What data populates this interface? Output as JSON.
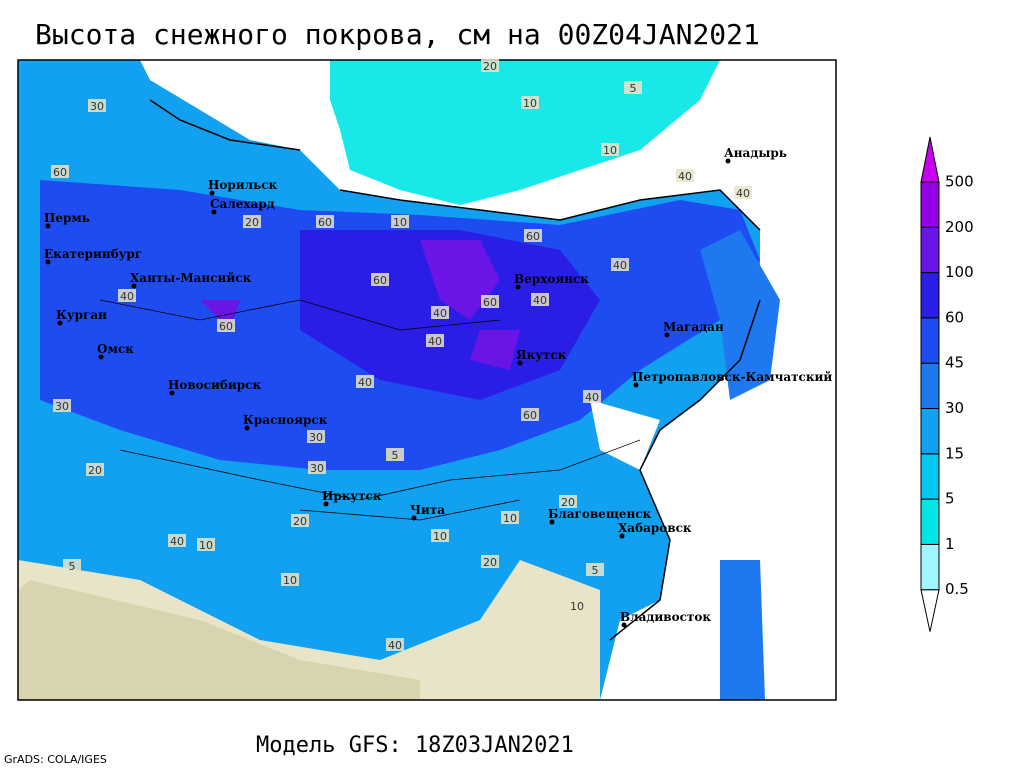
{
  "title": "Высота снежного покрова, см на 00Z04JAN2021",
  "model": "Модель GFS: 18Z03JAN2021",
  "credit": "GrADS: COLA/IGES",
  "legend": {
    "levels": [
      0.5,
      1,
      5,
      15,
      30,
      45,
      60,
      100,
      200,
      500
    ],
    "colors": [
      "#ffffff",
      "#a0f5ff",
      "#00e6e6",
      "#00c8f0",
      "#12a0f0",
      "#1e78f0",
      "#1e4cf0",
      "#2a1ee6",
      "#6a14e6",
      "#9600e6",
      "#c800f0"
    ]
  },
  "cities": [
    "Анадырь",
    "Норильск",
    "Салехард",
    "Пермь",
    "Екатеринбург",
    "Ханты-Мансийск",
    "Верхоянск",
    "Курган",
    "Магадан",
    "Омск",
    "Якутск",
    "Петропавловск-Камчатский",
    "Новосибирск",
    "Красноярск",
    "Иркутск",
    "Чита",
    "Благовещенск",
    "Хабаровск",
    "Владивосток"
  ],
  "contour_labels": [
    20,
    10,
    5,
    10,
    30,
    40,
    60,
    60,
    40,
    40,
    60,
    40,
    60,
    40,
    60,
    40,
    30,
    40,
    30,
    20,
    20,
    10,
    10,
    20,
    5,
    10,
    5,
    10,
    40,
    60,
    40,
    20,
    10,
    5,
    10,
    40,
    30,
    20,
    40,
    60
  ]
}
